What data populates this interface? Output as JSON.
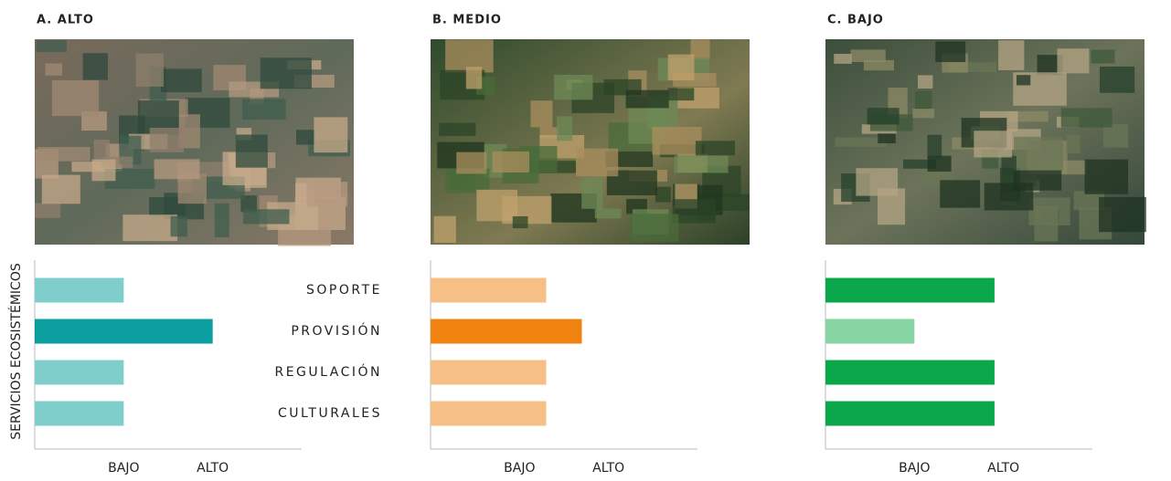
{
  "chart_data": [
    {
      "type": "bar",
      "title": "A. ALTO",
      "ylabel": "SERVICIOS ECOSISTÉMICOS",
      "categories": [
        "SOPORTE",
        "PROVISIÓN",
        "REGULACIÓN",
        "CULTURALES"
      ],
      "values": [
        1,
        2,
        1,
        1
      ],
      "colors": [
        "#80cecc",
        "#0a9e9f",
        "#80cecc",
        "#80cecc"
      ],
      "xlim": [
        0,
        3
      ],
      "xticks": [
        {
          "value": 1,
          "label": "BAJO"
        },
        {
          "value": 2,
          "label": "ALTO"
        }
      ]
    },
    {
      "type": "bar",
      "title": "B. MEDIO",
      "categories": [
        null,
        null,
        null,
        null
      ],
      "values": [
        1.3,
        1.7,
        1.3,
        1.3
      ],
      "colors": [
        "#f5bf85",
        "#f0820f",
        "#f5bf85",
        "#f5bf85"
      ],
      "xlim": [
        0,
        3
      ],
      "xticks": [
        {
          "value": 1,
          "label": "BAJO"
        },
        {
          "value": 2,
          "label": "ALTO"
        }
      ]
    },
    {
      "type": "bar",
      "title": "C. BAJO",
      "categories": [
        null,
        null,
        null,
        null
      ],
      "values": [
        1.9,
        1.0,
        1.9,
        1.9
      ],
      "colors": [
        "#0aa84a",
        "#86d4a1",
        "#0aa84a",
        "#0aa84a"
      ],
      "xlim": [
        0,
        3
      ],
      "xticks": [
        {
          "value": 1,
          "label": "BAJO"
        },
        {
          "value": 2,
          "label": "ALTO"
        }
      ]
    }
  ]
}
